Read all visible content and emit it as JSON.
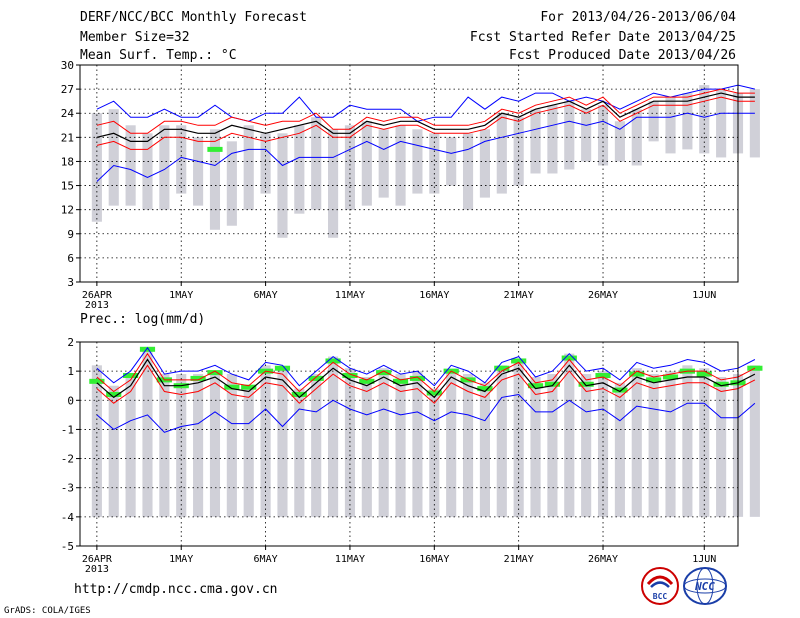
{
  "header": {
    "title": "DERF/NCC/BCC Monthly Forecast",
    "member_size": "Member Size=32",
    "variable": "Mean Surf. Temp.: °C",
    "period": "For 2013/04/26-2013/06/04",
    "refer_date": "Fcst Started Refer Date 2013/04/25",
    "produced_date": "Fcst Produced Date 2013/04/26"
  },
  "footer": {
    "url": "http://cmdp.ncc.cma.gov.cn",
    "grads": "GrADS: COLA/IGES",
    "logo_bcc": "BCC",
    "logo_ncc": "NCC"
  },
  "colors": {
    "box": "#d0d0d8",
    "max_line": "#0000ff",
    "red_line": "#ff0000",
    "mean_line": "#000000",
    "green_marker": "#33ee33",
    "grid": "#000000"
  },
  "chart_data": [
    {
      "id": "temperature",
      "type": "line",
      "title": "Mean Surf. Temp.: °C",
      "ylim": [
        3,
        30
      ],
      "yticks": [
        3,
        6,
        9,
        12,
        15,
        18,
        21,
        24,
        27,
        30
      ],
      "xlim": [
        -1,
        38
      ],
      "xticks": [
        {
          "x": 0,
          "label": "26APR",
          "year": "2013"
        },
        {
          "x": 5,
          "label": "1MAY"
        },
        {
          "x": 10,
          "label": "6MAY"
        },
        {
          "x": 15,
          "label": "11MAY"
        },
        {
          "x": 20,
          "label": "16MAY"
        },
        {
          "x": 25,
          "label": "21MAY"
        },
        {
          "x": 30,
          "label": "26MAY"
        },
        {
          "x": 36,
          "label": "1JUN"
        }
      ],
      "box_top": [
        24.0,
        24.5,
        22.5,
        21.5,
        22.5,
        22.5,
        21.0,
        22.0,
        20.5,
        22.5,
        21.5,
        21.5,
        22.5,
        23.5,
        22.0,
        22.5,
        23.0,
        22.0,
        22.5,
        22.0,
        21.5,
        21.0,
        21.5,
        22.0,
        24.0,
        23.5,
        24.5,
        25.0,
        25.5,
        24.5,
        25.0,
        23.0,
        24.5,
        25.5,
        26.0,
        26.5,
        27.5,
        27.0,
        26.5,
        27.0
      ],
      "box_bottom": [
        10.5,
        12.5,
        12.5,
        12.0,
        12.0,
        14.0,
        12.5,
        9.5,
        10.0,
        12.0,
        14.0,
        8.5,
        11.5,
        12.0,
        8.5,
        12.0,
        12.5,
        13.5,
        12.5,
        14.0,
        14.0,
        15.0,
        12.0,
        13.5,
        14.0,
        15.0,
        16.5,
        16.5,
        17.0,
        18.0,
        17.5,
        18.0,
        17.5,
        20.5,
        19.0,
        19.5,
        19.0,
        18.5,
        19.0,
        18.5
      ],
      "max": [
        24.5,
        25.5,
        23.5,
        23.5,
        24.5,
        23.5,
        23.5,
        25.0,
        23.5,
        23.0,
        24.0,
        24.0,
        26.0,
        23.5,
        23.5,
        25.0,
        24.5,
        24.5,
        24.5,
        23.0,
        23.5,
        23.5,
        26.0,
        24.5,
        26.0,
        25.5,
        26.5,
        26.5,
        25.5,
        26.0,
        25.5,
        24.5,
        25.5,
        26.5,
        26.0,
        26.5,
        27.0,
        27.0,
        27.5,
        27.0
      ],
      "upper": [
        22.5,
        23.0,
        21.5,
        21.5,
        23.0,
        23.0,
        22.5,
        22.5,
        23.5,
        23.0,
        22.5,
        23.0,
        23.0,
        24.0,
        22.0,
        22.0,
        23.5,
        23.0,
        23.5,
        23.5,
        22.5,
        22.5,
        22.5,
        23.0,
        24.5,
        24.0,
        25.0,
        25.5,
        26.0,
        25.0,
        26.0,
        24.0,
        25.0,
        26.0,
        26.0,
        26.0,
        26.5,
        27.0,
        26.5,
        26.5
      ],
      "mean": [
        21.0,
        21.5,
        20.5,
        20.5,
        22.0,
        22.0,
        21.5,
        21.5,
        22.5,
        22.0,
        21.5,
        22.0,
        22.5,
        23.0,
        21.5,
        21.5,
        23.0,
        22.5,
        23.0,
        23.0,
        22.0,
        22.0,
        22.0,
        22.5,
        24.0,
        23.5,
        24.5,
        25.0,
        25.5,
        24.5,
        25.5,
        23.5,
        24.5,
        25.5,
        25.5,
        25.5,
        26.0,
        26.5,
        26.0,
        26.0
      ],
      "lower": [
        20.0,
        20.5,
        19.5,
        19.5,
        21.0,
        21.0,
        20.5,
        20.5,
        21.5,
        21.0,
        20.5,
        21.0,
        21.5,
        22.5,
        21.0,
        21.0,
        22.5,
        22.0,
        22.5,
        22.5,
        21.5,
        21.5,
        21.5,
        22.0,
        23.5,
        23.0,
        24.0,
        24.5,
        25.0,
        24.0,
        25.0,
        23.0,
        24.0,
        25.0,
        25.0,
        25.0,
        25.5,
        26.0,
        25.5,
        25.5
      ],
      "min": [
        15.5,
        17.5,
        17.0,
        16.0,
        17.0,
        18.5,
        18.0,
        17.5,
        19.0,
        19.5,
        19.5,
        17.5,
        18.5,
        18.5,
        18.5,
        19.5,
        20.5,
        19.5,
        20.5,
        20.0,
        19.5,
        19.0,
        19.5,
        20.5,
        21.0,
        21.5,
        22.0,
        22.5,
        23.0,
        22.5,
        23.0,
        22.0,
        23.5,
        23.5,
        23.5,
        24.0,
        23.5,
        24.0,
        24.0,
        24.0
      ],
      "green": [
        null,
        null,
        null,
        null,
        null,
        null,
        null,
        19.5,
        null,
        null,
        null,
        null,
        null,
        null,
        null,
        null,
        null,
        null,
        null,
        null,
        null,
        null,
        null,
        null,
        null,
        null,
        null,
        null,
        null,
        null,
        null,
        null,
        null,
        null,
        null,
        null,
        null,
        null,
        null,
        null
      ]
    },
    {
      "id": "precipitation",
      "type": "line",
      "title": "Prec.: log(mm/d)",
      "ylim": [
        -5,
        2
      ],
      "yticks": [
        -5,
        -4,
        -3,
        -2,
        -1,
        0,
        1,
        2
      ],
      "xlim": [
        -1,
        38
      ],
      "xticks": [
        {
          "x": 0,
          "label": "26APR",
          "year": "2013"
        },
        {
          "x": 5,
          "label": "1MAY"
        },
        {
          "x": 10,
          "label": "6MAY"
        },
        {
          "x": 15,
          "label": "11MAY"
        },
        {
          "x": 20,
          "label": "16MAY"
        },
        {
          "x": 25,
          "label": "21MAY"
        },
        {
          "x": 30,
          "label": "26MAY"
        },
        {
          "x": 36,
          "label": "1JUN"
        }
      ],
      "box_top": [
        1.2,
        0.5,
        0.9,
        1.8,
        0.9,
        0.9,
        0.9,
        1.0,
        0.9,
        0.5,
        1.2,
        1.1,
        0.4,
        0.9,
        1.5,
        1.1,
        0.8,
        1.1,
        0.9,
        1.0,
        0.4,
        1.0,
        0.9,
        0.6,
        1.2,
        1.4,
        0.8,
        0.9,
        1.6,
        0.9,
        1.0,
        0.6,
        1.1,
        0.9,
        1.0,
        1.2,
        1.1,
        0.8,
        0.9,
        1.2
      ],
      "box_bottom": [
        -4,
        -4,
        -4,
        -4,
        -4,
        -4,
        -4,
        -4,
        -4,
        -4,
        -4,
        -4,
        -4,
        -4,
        -4,
        -4,
        -4,
        -4,
        -4,
        -4,
        -4,
        -4,
        -4,
        -4,
        -4,
        -4,
        -4,
        -4,
        -4,
        -4,
        -4,
        -4,
        -4,
        -4,
        -4,
        -4,
        -4,
        -4,
        -4,
        -4
      ],
      "max": [
        1.1,
        0.6,
        1.0,
        1.8,
        0.9,
        1.0,
        1.0,
        1.2,
        0.9,
        0.7,
        1.3,
        1.2,
        0.5,
        1.0,
        1.5,
        1.1,
        0.9,
        1.2,
        0.9,
        1.0,
        0.5,
        1.2,
        1.0,
        0.6,
        1.3,
        1.5,
        0.8,
        1.0,
        1.6,
        1.0,
        1.1,
        0.7,
        1.3,
        1.1,
        1.2,
        1.4,
        1.3,
        1.0,
        1.1,
        1.4
      ],
      "upper": [
        0.8,
        0.3,
        0.7,
        1.6,
        0.7,
        0.7,
        0.7,
        1.0,
        0.6,
        0.5,
        1.0,
        0.9,
        0.3,
        0.8,
        1.3,
        0.9,
        0.7,
        1.0,
        0.7,
        0.8,
        0.3,
        1.0,
        0.7,
        0.5,
        1.0,
        1.3,
        0.6,
        0.7,
        1.4,
        0.7,
        0.8,
        0.5,
        1.0,
        0.8,
        0.9,
        1.0,
        1.0,
        0.7,
        0.8,
        1.1
      ],
      "mean": [
        0.6,
        0.1,
        0.5,
        1.4,
        0.5,
        0.5,
        0.6,
        0.8,
        0.4,
        0.3,
        0.8,
        0.7,
        0.1,
        0.6,
        1.1,
        0.7,
        0.5,
        0.8,
        0.5,
        0.6,
        0.1,
        0.8,
        0.5,
        0.3,
        0.9,
        1.1,
        0.4,
        0.5,
        1.2,
        0.5,
        0.6,
        0.3,
        0.8,
        0.6,
        0.7,
        0.8,
        0.8,
        0.5,
        0.6,
        0.9
      ],
      "lower": [
        0.4,
        -0.1,
        0.3,
        1.2,
        0.3,
        0.2,
        0.3,
        0.6,
        0.2,
        0.1,
        0.6,
        0.5,
        -0.1,
        0.4,
        0.9,
        0.5,
        0.3,
        0.6,
        0.3,
        0.4,
        -0.1,
        0.6,
        0.3,
        0.1,
        0.7,
        0.9,
        0.2,
        0.3,
        1.0,
        0.3,
        0.4,
        0.1,
        0.6,
        0.4,
        0.5,
        0.6,
        0.6,
        0.3,
        0.4,
        0.7
      ],
      "min": [
        -0.5,
        -1.0,
        -0.7,
        -0.5,
        -1.1,
        -0.9,
        -0.8,
        -0.4,
        -0.8,
        -0.8,
        -0.3,
        -0.9,
        -0.3,
        -0.4,
        0.0,
        -0.3,
        -0.5,
        -0.3,
        -0.5,
        -0.4,
        -0.7,
        -0.4,
        -0.5,
        -0.7,
        0.1,
        0.2,
        -0.4,
        -0.4,
        0.0,
        -0.4,
        -0.3,
        -0.7,
        -0.2,
        -0.3,
        -0.4,
        -0.1,
        -0.1,
        -0.6,
        -0.6,
        -0.1
      ],
      "green": [
        0.65,
        0.2,
        0.85,
        1.75,
        0.7,
        0.5,
        0.75,
        0.95,
        0.45,
        0.45,
        1.0,
        1.1,
        0.2,
        0.75,
        1.35,
        0.85,
        0.65,
        0.95,
        0.65,
        0.75,
        0.25,
        1.0,
        0.7,
        0.4,
        1.1,
        1.35,
        0.5,
        0.55,
        1.45,
        0.55,
        0.85,
        0.35,
        0.9,
        0.7,
        0.8,
        1.0,
        0.9,
        0.55,
        0.6,
        1.1
      ]
    }
  ]
}
